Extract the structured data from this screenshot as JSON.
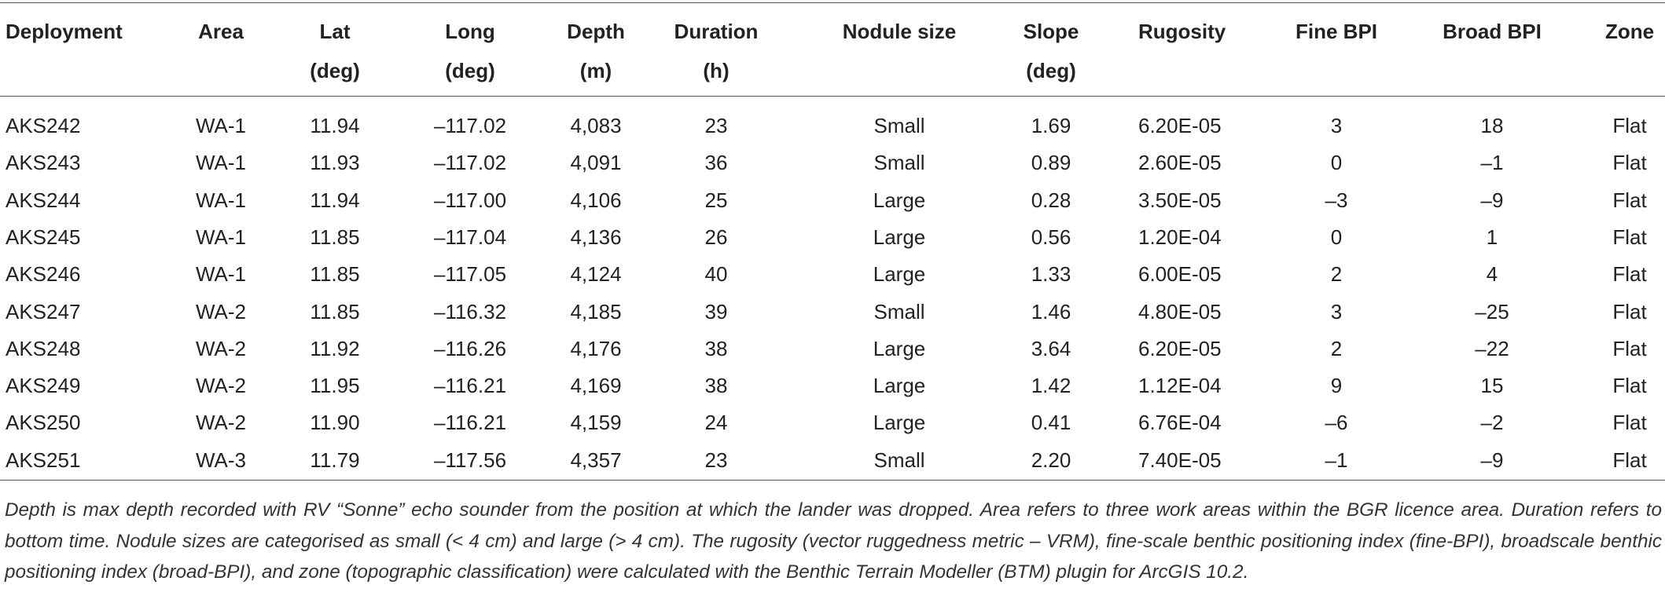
{
  "table": {
    "header": [
      [
        "Deployment"
      ],
      [
        "Area"
      ],
      [
        "Lat",
        "(deg)"
      ],
      [
        "Long",
        "(deg)"
      ],
      [
        "Depth",
        "(m)"
      ],
      [
        "Duration",
        "(h)"
      ],
      [
        "Nodule size"
      ],
      [
        "Slope",
        "(deg)"
      ],
      [
        "Rugosity"
      ],
      [
        "Fine BPI"
      ],
      [
        "Broad BPI"
      ],
      [
        "Zone"
      ]
    ],
    "rows": [
      [
        "AKS242",
        "WA-1",
        "11.94",
        "–117.02",
        "4,083",
        "23",
        "Small",
        "1.69",
        "6.20E-05",
        "3",
        "18",
        "Flat"
      ],
      [
        "AKS243",
        "WA-1",
        "11.93",
        "–117.02",
        "4,091",
        "36",
        "Small",
        "0.89",
        "2.60E-05",
        "0",
        "–1",
        "Flat"
      ],
      [
        "AKS244",
        "WA-1",
        "11.94",
        "–117.00",
        "4,106",
        "25",
        "Large",
        "0.28",
        "3.50E-05",
        "–3",
        "–9",
        "Flat"
      ],
      [
        "AKS245",
        "WA-1",
        "11.85",
        "–117.04",
        "4,136",
        "26",
        "Large",
        "0.56",
        "1.20E-04",
        "0",
        "1",
        "Flat"
      ],
      [
        "AKS246",
        "WA-1",
        "11.85",
        "–117.05",
        "4,124",
        "40",
        "Large",
        "1.33",
        "6.00E-05",
        "2",
        "4",
        "Flat"
      ],
      [
        "AKS247",
        "WA-2",
        "11.85",
        "–116.32",
        "4,185",
        "39",
        "Small",
        "1.46",
        "4.80E-05",
        "3",
        "–25",
        "Flat"
      ],
      [
        "AKS248",
        "WA-2",
        "11.92",
        "–116.26",
        "4,176",
        "38",
        "Large",
        "3.64",
        "6.20E-05",
        "2",
        "–22",
        "Flat"
      ],
      [
        "AKS249",
        "WA-2",
        "11.95",
        "–116.21",
        "4,169",
        "38",
        "Large",
        "1.42",
        "1.12E-04",
        "9",
        "15",
        "Flat"
      ],
      [
        "AKS250",
        "WA-2",
        "11.90",
        "–116.21",
        "4,159",
        "24",
        "Large",
        "0.41",
        "6.76E-04",
        "–6",
        "–2",
        "Flat"
      ],
      [
        "AKS251",
        "WA-3",
        "11.79",
        "–117.56",
        "4,357",
        "23",
        "Small",
        "2.20",
        "7.40E-05",
        "–1",
        "–9",
        "Flat"
      ]
    ],
    "footnote": "Depth is max depth recorded with RV “Sonne” echo sounder from the position at which the lander was dropped. Area refers to three work areas within the BGR licence area. Duration refers to bottom time. Nodule sizes are categorised as small (< 4 cm) and large (> 4 cm). The rugosity (vector ruggedness metric – VRM), fine-scale benthic positioning index (fine-BPI), broadscale benthic positioning index (broad-BPI), and zone (topographic classification) were calculated with the Benthic Terrain Modeller (BTM) plugin for ArcGIS 10.2."
  }
}
